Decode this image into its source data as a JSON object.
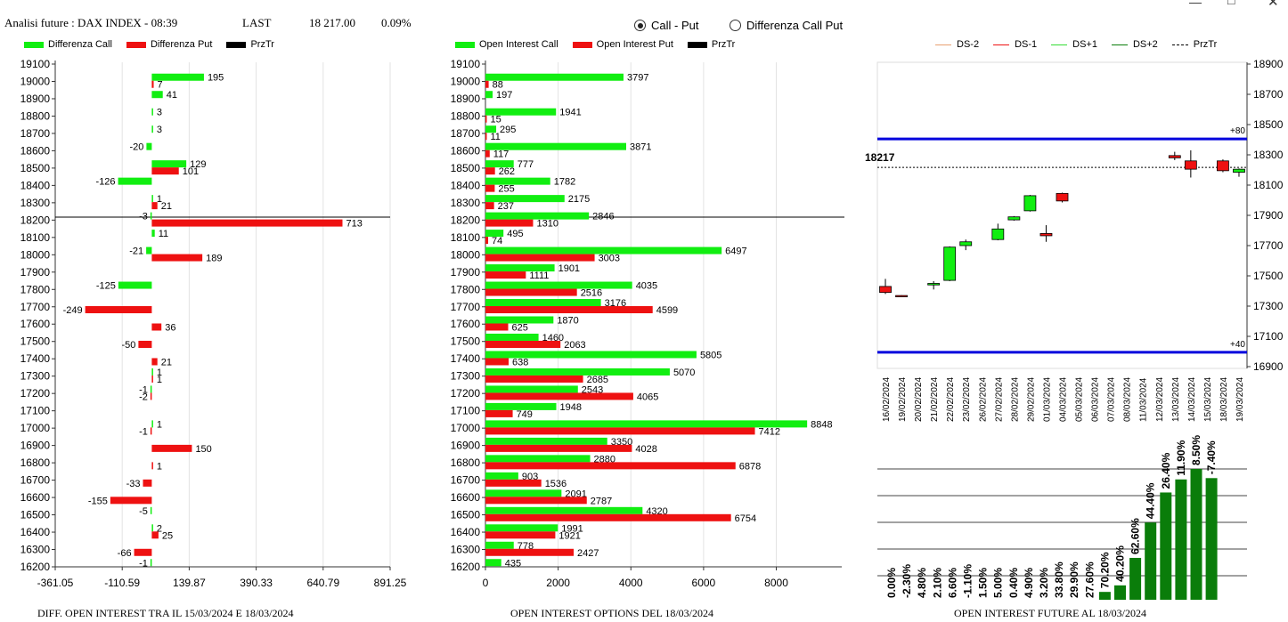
{
  "header": {
    "title": "Analisi future : DAX INDEX - 08:39",
    "last_label": "LAST",
    "last_value": "18 217.00",
    "change": "0.09%"
  },
  "radios": [
    {
      "label": "Call - Put",
      "selected": true
    },
    {
      "label": "Differenza Call Put",
      "selected": false
    }
  ],
  "window_controls": [
    "minimize-icon",
    "maximize-icon",
    "close-icon"
  ],
  "colors": {
    "green": "#11ee11",
    "red": "#ee1111",
    "blue": "#0000dd",
    "dark_green": "#0a7d0a"
  },
  "strikes": [
    19100,
    19000,
    18900,
    18800,
    18700,
    18600,
    18500,
    18400,
    18300,
    18200,
    18100,
    18000,
    17900,
    17800,
    17700,
    17600,
    17500,
    17400,
    17300,
    17200,
    17100,
    17000,
    16900,
    16800,
    16700,
    16600,
    16500,
    16400,
    16300,
    16200
  ],
  "diff_chart": {
    "legend": [
      {
        "label": "Differenza Call",
        "color": "#11ee11"
      },
      {
        "label": "Differenza Put",
        "color": "#ee1111"
      },
      {
        "label": "PrzTr",
        "color": "#000000"
      }
    ],
    "caption": "DIFF. OPEN INTEREST TRA IL 15/03/2024 E 18/03/2024",
    "x_ticks": [
      "-361.05",
      "-110.59",
      "139.87",
      "390.33",
      "640.79",
      "891.25"
    ],
    "xlim": [
      -361.05,
      891.25
    ],
    "price_line": 18217
  },
  "oi_chart": {
    "legend": [
      {
        "label": "Open Interest Call",
        "color": "#11ee11"
      },
      {
        "label": "Open Interest Put",
        "color": "#ee1111"
      },
      {
        "label": "PrzTr",
        "color": "#000000"
      }
    ],
    "caption": "OPEN INTEREST OPTIONS DEL 18/03/2024",
    "x_ticks": [
      "0",
      "2000",
      "4000",
      "6000",
      "8000"
    ],
    "xlim": [
      0,
      9800
    ],
    "price_line": 18217
  },
  "future_chart": {
    "legend": [
      {
        "label": "DS-2",
        "color": "#e8a070",
        "style": "solid"
      },
      {
        "label": "DS-1",
        "color": "#ee1111",
        "style": "solid"
      },
      {
        "label": "DS+1",
        "color": "#33dd33",
        "style": "solid"
      },
      {
        "label": "DS+2",
        "color": "#0a7d0a",
        "style": "solid"
      },
      {
        "label": "PrzTr",
        "color": "#000000",
        "style": "dashed"
      }
    ],
    "y_ticks": [
      "18900",
      "18700",
      "18500",
      "18300",
      "18100",
      "17900",
      "17700",
      "17500",
      "17300",
      "17100",
      "16900"
    ],
    "ylim": [
      16900,
      18900
    ],
    "upper_level": 18405,
    "upper_label": "+80",
    "lower_level": 16995,
    "lower_label": "+40",
    "price_label": "18217",
    "price_level": 18217,
    "dates": [
      "16/02/2024",
      "19/02/2024",
      "20/02/2024",
      "21/02/2024",
      "22/02/2024",
      "23/02/2024",
      "26/02/2024",
      "27/02/2024",
      "28/02/2024",
      "29/02/2024",
      "01/03/2024",
      "04/03/2024",
      "05/03/2024",
      "06/03/2024",
      "07/03/2024",
      "08/03/2024",
      "11/03/2024",
      "12/03/2024",
      "13/03/2024",
      "14/03/2024",
      "15/03/2024",
      "18/03/2024",
      "19/03/2024"
    ],
    "oi_percent": [
      "0.00%",
      "-2.30%",
      "4.80%",
      "2.10%",
      "6.60%",
      "-1.10%",
      "1.50%",
      "5.00%",
      "0.40%",
      "4.90%",
      "3.20%",
      "33.80%",
      "29.90%",
      "27.60%",
      "70.20%",
      "40.20%",
      "62.60%",
      "44.40%",
      "26.40%",
      "11.90%",
      "8.50%",
      "-7.40%"
    ],
    "caption": "OPEN INTEREST FUTURE AL 18/03/2024"
  },
  "chart_data": [
    {
      "type": "bar",
      "orientation": "horizontal",
      "caption": "DIFF. OPEN INTEREST TRA IL 15/03/2024 E 18/03/2024",
      "categories": [
        19100,
        19000,
        18900,
        18800,
        18700,
        18600,
        18500,
        18400,
        18300,
        18200,
        18100,
        18000,
        17900,
        17800,
        17700,
        17600,
        17500,
        17400,
        17300,
        17200,
        17100,
        17000,
        16900,
        16800,
        16700,
        16600,
        16500,
        16400,
        16300,
        16200
      ],
      "series": [
        {
          "name": "Differenza Call",
          "values": [
            null,
            195,
            41,
            3,
            3,
            -20,
            129,
            -126,
            1,
            -3,
            11,
            -21,
            null,
            -125,
            null,
            null,
            null,
            null,
            1,
            -1,
            null,
            1,
            null,
            null,
            null,
            null,
            -5,
            2,
            null,
            -1
          ]
        },
        {
          "name": "Differenza Put",
          "values": [
            null,
            7,
            null,
            null,
            null,
            null,
            101,
            null,
            21,
            713,
            null,
            189,
            null,
            null,
            -249,
            36,
            -50,
            21,
            1,
            -2,
            null,
            -1,
            150,
            1,
            -33,
            -155,
            null,
            25,
            -66,
            null
          ]
        }
      ],
      "xlim": [
        -361.05,
        891.25
      ]
    },
    {
      "type": "bar",
      "orientation": "horizontal",
      "caption": "OPEN INTEREST OPTIONS DEL 18/03/2024",
      "categories": [
        19100,
        19000,
        18900,
        18800,
        18700,
        18600,
        18500,
        18400,
        18300,
        18200,
        18100,
        18000,
        17900,
        17800,
        17700,
        17600,
        17500,
        17400,
        17300,
        17200,
        17100,
        17000,
        16900,
        16800,
        16700,
        16600,
        16500,
        16400,
        16300,
        16200
      ],
      "series": [
        {
          "name": "Open Interest Call",
          "values": [
            null,
            3797,
            197,
            1941,
            295,
            3871,
            777,
            1782,
            2175,
            2846,
            495,
            6497,
            1901,
            4035,
            3176,
            1870,
            1460,
            5805,
            5070,
            2543,
            1948,
            8848,
            3350,
            2880,
            903,
            2091,
            4320,
            1991,
            778,
            435
          ]
        },
        {
          "name": "Open Interest Put",
          "values": [
            null,
            88,
            null,
            15,
            11,
            117,
            262,
            255,
            237,
            1310,
            74,
            3003,
            1111,
            2516,
            4599,
            625,
            2063,
            638,
            2685,
            4065,
            749,
            7412,
            4028,
            6878,
            1536,
            2787,
            6754,
            1921,
            2427,
            null
          ]
        }
      ],
      "xlim": [
        0,
        9800
      ]
    },
    {
      "type": "candlestick",
      "caption": "OPEN INTEREST FUTURE AL 18/03/2024",
      "ylim": [
        16900,
        18900
      ],
      "x": [
        "16/02/2024",
        "19/02/2024",
        "20/02/2024",
        "21/02/2024",
        "22/02/2024",
        "23/02/2024",
        "26/02/2024",
        "27/02/2024",
        "28/02/2024",
        "29/02/2024",
        "01/03/2024",
        "04/03/2024",
        "05/03/2024",
        "06/03/2024",
        "07/03/2024",
        "08/03/2024",
        "11/03/2024",
        "12/03/2024",
        "13/03/2024",
        "14/03/2024",
        "15/03/2024",
        "18/03/2024",
        "19/03/2024"
      ],
      "candles": [
        {
          "o": 17430,
          "h": 17480,
          "l": 17380,
          "c": 17390
        },
        {
          "o": 17370,
          "h": 17372,
          "l": 17363,
          "c": 17365
        },
        null,
        {
          "o": 17440,
          "h": 17465,
          "l": 17410,
          "c": 17450
        },
        {
          "o": 17470,
          "h": 17695,
          "l": 17465,
          "c": 17690
        },
        {
          "o": 17700,
          "h": 17740,
          "l": 17670,
          "c": 17725
        },
        null,
        {
          "o": 17740,
          "h": 17845,
          "l": 17735,
          "c": 17810
        },
        {
          "o": 17870,
          "h": 17895,
          "l": 17865,
          "c": 17890
        },
        {
          "o": 17930,
          "h": 18035,
          "l": 17925,
          "c": 18030
        },
        {
          "o": 17780,
          "h": 17835,
          "l": 17725,
          "c": 17765
        },
        {
          "o": 18045,
          "h": 18050,
          "l": 17985,
          "c": 17995
        },
        null,
        null,
        null,
        null,
        null,
        null,
        {
          "o": 18295,
          "h": 18320,
          "l": 18265,
          "c": 18280
        },
        {
          "o": 18260,
          "h": 18330,
          "l": 18150,
          "c": 18205
        },
        null,
        {
          "o": 18260,
          "h": 18270,
          "l": 18185,
          "c": 18195
        },
        {
          "o": 18185,
          "h": 18210,
          "l": 18155,
          "c": 18205
        }
      ],
      "oi_bars": {
        "labels": [
          "0.00%",
          "-2.30%",
          "4.80%",
          "2.10%",
          "6.60%",
          "-1.10%",
          "1.50%",
          "5.00%",
          "0.40%",
          "4.90%",
          "3.20%",
          "33.80%",
          "29.90%",
          "27.60%",
          "70.20%",
          "40.20%",
          "62.60%",
          "44.40%",
          "26.40%",
          "11.90%",
          "8.50%",
          "-7.40%"
        ],
        "values": [
          0,
          0,
          0,
          0,
          0,
          0,
          0,
          0,
          0,
          0,
          0,
          0,
          0,
          0,
          0.06,
          0.11,
          0.32,
          0.59,
          0.82,
          0.92,
          1.0,
          0.93
        ]
      }
    }
  ]
}
